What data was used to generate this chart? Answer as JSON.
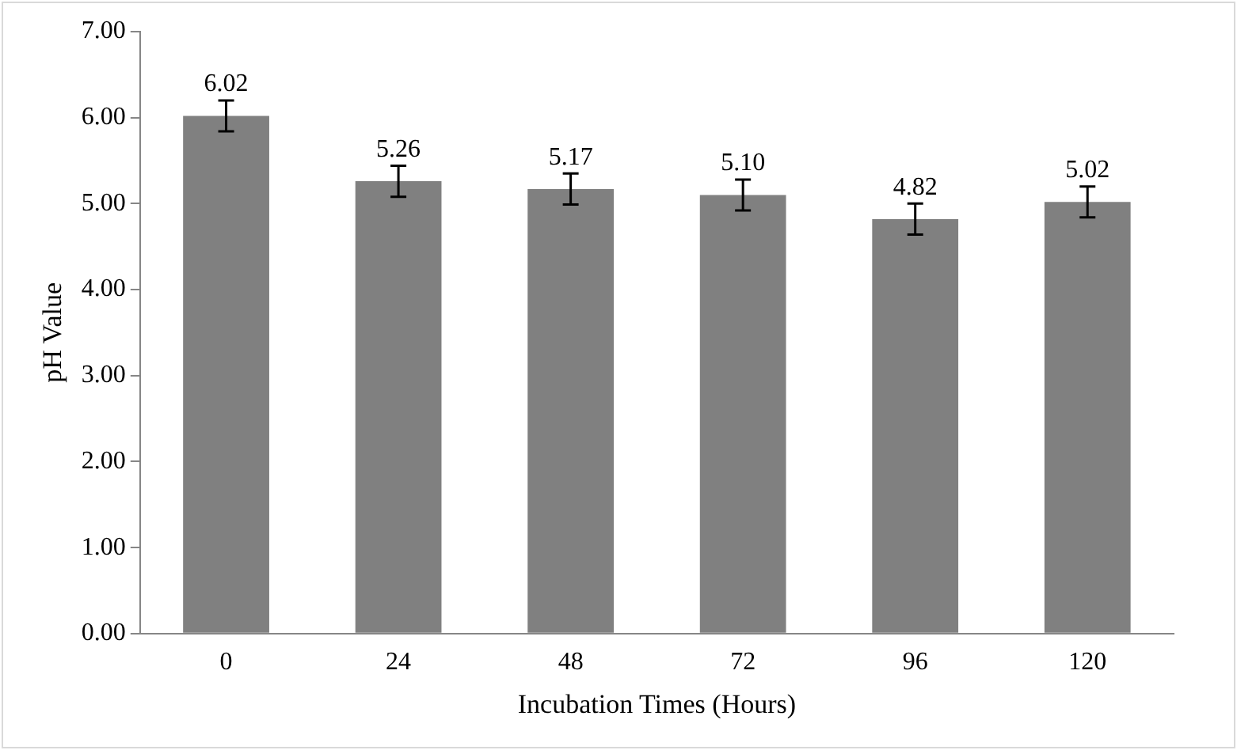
{
  "chart_data": {
    "type": "bar",
    "xlabel": "Incubation Times (Hours)",
    "ylabel": "pH Value",
    "categories": [
      "0",
      "24",
      "48",
      "72",
      "96",
      "120"
    ],
    "values": [
      6.02,
      5.26,
      5.17,
      5.1,
      4.82,
      5.02
    ],
    "errors": [
      0.18,
      0.18,
      0.18,
      0.18,
      0.18,
      0.18
    ],
    "value_labels": [
      "6.02",
      "5.26",
      "5.17",
      "5.10",
      "4.82",
      "5.02"
    ],
    "color": "#808080",
    "grid": false,
    "legend": false,
    "ylim": [
      0,
      7
    ],
    "yticks": [
      {
        "value": 0,
        "label": "0.00"
      },
      {
        "value": 1,
        "label": "1.00"
      },
      {
        "value": 2,
        "label": "2.00"
      },
      {
        "value": 3,
        "label": "3.00"
      },
      {
        "value": 4,
        "label": "4.00"
      },
      {
        "value": 5,
        "label": "5.00"
      },
      {
        "value": 6,
        "label": "6.00"
      },
      {
        "value": 7,
        "label": "7.00"
      }
    ]
  }
}
